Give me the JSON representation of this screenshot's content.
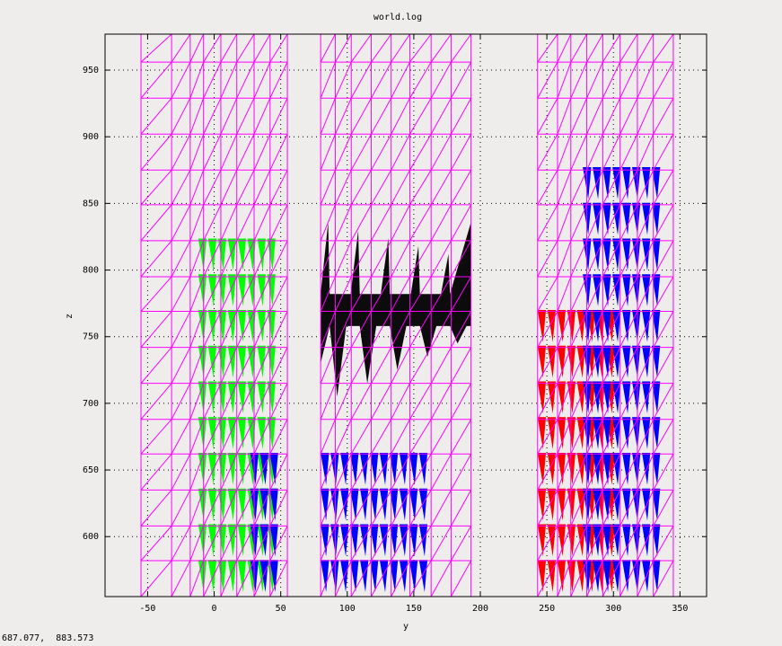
{
  "window": {
    "title": "world.log"
  },
  "status": {
    "coordinates": "687.077,  883.573"
  },
  "colors": {
    "background": "#efedeb",
    "plot_background": "#efedeb",
    "mesh": "#ff00ff",
    "green_region": "#00ff00",
    "blue_region": "#0000ff",
    "black_region": "#000000",
    "red_region": "#ff0000",
    "light_blue_marks": "#3399ff"
  },
  "chart_data": {
    "type": "scatter",
    "title": "world.log",
    "xlabel": "y",
    "ylabel": "z",
    "xlim": [
      -82,
      370
    ],
    "ylim": [
      555,
      977
    ],
    "x_ticks": [
      -50,
      0,
      50,
      100,
      150,
      200,
      250,
      300,
      350
    ],
    "y_ticks": [
      600,
      650,
      700,
      750,
      800,
      850,
      900,
      950
    ],
    "grid": true,
    "grid_style": "dotted",
    "mesh_columns": [
      {
        "x": [
          -55,
          -32,
          -18,
          -8,
          5,
          17,
          30,
          42,
          55
        ]
      },
      {
        "x": [
          80,
          91,
          103,
          118,
          133,
          147,
          163,
          178,
          193
        ]
      },
      {
        "x": [
          243,
          258,
          268,
          280,
          292,
          305,
          318,
          330,
          345
        ]
      }
    ],
    "mesh_z_levels": [
      555,
      582,
      608,
      635,
      662,
      688,
      715,
      742,
      769,
      795,
      822,
      849,
      875,
      902,
      929,
      956,
      977
    ],
    "regions": [
      {
        "color": "green",
        "x": [
          -12,
          47
        ],
        "z": [
          555,
          836
        ],
        "pattern": "triangles"
      },
      {
        "color": "blue",
        "x": [
          27,
          55
        ],
        "z": [
          555,
          675
        ],
        "pattern": "triangles"
      },
      {
        "color": "blue",
        "x": [
          80,
          163
        ],
        "z": [
          555,
          675
        ],
        "pattern": "triangles"
      },
      {
        "color": "black",
        "x": [
          80,
          193
        ],
        "z": [
          705,
          836
        ],
        "pattern": "sawtooth"
      },
      {
        "color": "red",
        "x": [
          243,
          307
        ],
        "z": [
          555,
          782
        ],
        "pattern": "triangles"
      },
      {
        "color": "blue",
        "x": [
          277,
          340
        ],
        "z": [
          555,
          890
        ],
        "pattern": "triangles"
      }
    ]
  }
}
